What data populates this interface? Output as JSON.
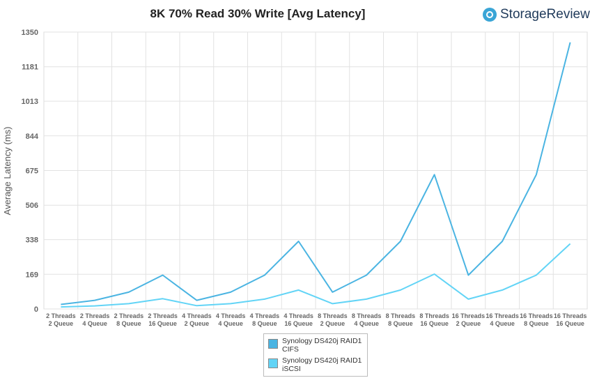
{
  "chart_data": {
    "type": "line",
    "title": "8K 70% Read 30% Write [Avg Latency]",
    "ylabel": "Average Latency  (ms)",
    "xlabel": "",
    "ylim": [
      0,
      1350
    ],
    "yticks": [
      "0",
      "169",
      "338",
      "506",
      "675",
      "844",
      "1013",
      "1181",
      "1350"
    ],
    "grid": true,
    "legend_position": "bottom",
    "categories": [
      [
        "2 Threads",
        "2 Queue"
      ],
      [
        "2 Threads",
        "4 Queue"
      ],
      [
        "2 Threads",
        "8 Queue"
      ],
      [
        "2 Threads",
        "16 Queue"
      ],
      [
        "4 Threads",
        "2 Queue"
      ],
      [
        "4 Threads",
        "4 Queue"
      ],
      [
        "4 Threads",
        "8 Queue"
      ],
      [
        "4 Threads",
        "16 Queue"
      ],
      [
        "8 Threads",
        "2 Queue"
      ],
      [
        "8 Threads",
        "4 Queue"
      ],
      [
        "8 Threads",
        "8 Queue"
      ],
      [
        "8 Threads",
        "16 Queue"
      ],
      [
        "16 Threads",
        "2 Queue"
      ],
      [
        "16 Threads",
        "4 Queue"
      ],
      [
        "16 Threads",
        "8 Queue"
      ],
      [
        "16 Threads",
        "16 Queue"
      ]
    ],
    "series": [
      {
        "name": "Synology DS420j RAID1\nCIFS",
        "color": "#4ab4e2",
        "values": [
          22,
          42,
          82,
          165,
          42,
          82,
          165,
          330,
          82,
          165,
          330,
          655,
          165,
          330,
          655,
          1300
        ]
      },
      {
        "name": "Synology DS420j RAID1\niSCSI",
        "color": "#62d4f6",
        "values": [
          10,
          15,
          26,
          50,
          16,
          26,
          48,
          92,
          26,
          48,
          92,
          170,
          48,
          92,
          165,
          318
        ]
      }
    ]
  },
  "brand": {
    "name": "StorageReview",
    "icon": "storagereview-logo-icon"
  }
}
